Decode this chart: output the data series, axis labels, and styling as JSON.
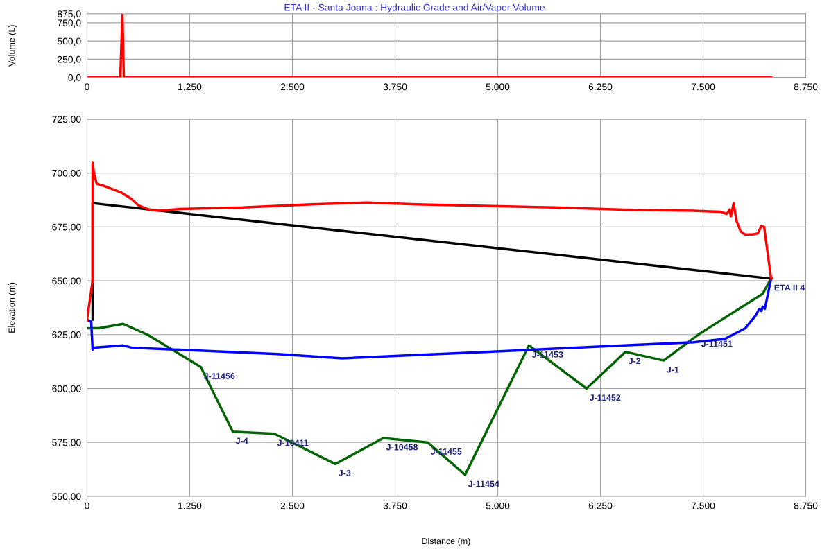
{
  "chart_data": [
    {
      "type": "line",
      "title": "ETA II - Santa Joana : Hydraulic Grade and Air/Vapor Volume",
      "ylabel": "Volume (L)",
      "series": [
        {
          "color": "#ff0000",
          "x": [
            0,
            405,
            431,
            448,
            8328
          ],
          "values": [
            0,
            0,
            875,
            0,
            0
          ]
        }
      ],
      "xlim": [
        0,
        8750
      ],
      "xticks": [
        0,
        {
          "value": 1250,
          "label": "1.250"
        },
        {
          "value": 2500,
          "label": "2.500"
        },
        {
          "value": 3750,
          "label": "3.750"
        },
        {
          "value": 5000,
          "label": "5.000"
        },
        {
          "value": 6250,
          "label": "6.250"
        },
        {
          "value": 7500,
          "label": "7.500"
        },
        {
          "value": 8750,
          "label": "8.750"
        }
      ],
      "ylim": [
        0,
        875
      ],
      "yticks": [
        {
          "value": 0,
          "label": "0,0"
        },
        {
          "value": 250,
          "label": "250,0"
        },
        {
          "value": 500,
          "label": "500,0"
        },
        {
          "value": 750,
          "label": "750,0"
        },
        {
          "value": 875,
          "label": "875,0"
        }
      ],
      "grid": true,
      "marker": "none",
      "line_style": "solid"
    },
    {
      "type": "line",
      "xlabel": "Distance (m)",
      "ylabel": "Elevation (m)",
      "series": [
        {
          "color": "#006400",
          "x": [
            0,
            143,
            439,
            735,
            1385,
            1774,
            2280,
            3024,
            3606,
            4147,
            4603,
            5380,
            6081,
            6554,
            7019,
            7441,
            8226,
            8328
          ],
          "values": [
            628,
            628,
            630,
            625,
            610,
            580,
            579,
            565,
            577,
            575,
            560,
            620,
            600,
            617,
            613,
            625,
            644,
            651
          ]
        },
        {
          "color": "#000000",
          "x": [
            68,
            68,
            8328
          ],
          "values": [
            632,
            686,
            651
          ]
        },
        {
          "color": "#0000ff",
          "x": [
            0,
            51,
            68,
            84,
            439,
            541,
            1132,
            2314,
            3108,
            4848,
            6537,
            7382,
            7762,
            8015,
            8142,
            8184,
            8209,
            8226,
            8252,
            8328
          ],
          "values": [
            632,
            631,
            618,
            619,
            620,
            619,
            618,
            616,
            614,
            617,
            620,
            621.5,
            623,
            628,
            634,
            637,
            636,
            638,
            637,
            651
          ]
        },
        {
          "color": "#ff0000",
          "x": [
            0,
            68,
            68,
            84,
            118,
            203,
            414,
            541,
            625,
            752,
            878,
            1132,
            1892,
            2736,
            3412,
            4003,
            5693,
            6537,
            7382,
            7720,
            7787,
            7821,
            7838,
            7872,
            7905,
            7956,
            8007,
            8100,
            8167,
            8209,
            8243,
            8328
          ],
          "values": [
            632,
            650,
            705,
            700,
            695,
            694,
            691,
            688,
            685,
            683,
            682.5,
            683.3,
            684,
            685.5,
            686.3,
            685.5,
            684,
            683,
            682.5,
            682,
            681,
            683,
            680,
            686,
            678,
            673,
            671.5,
            671.5,
            672,
            675.5,
            675,
            651
          ]
        }
      ],
      "xlim": [
        0,
        8750
      ],
      "xticks": [
        0,
        {
          "value": 1250,
          "label": "1.250"
        },
        {
          "value": 2500,
          "label": "2.500"
        },
        {
          "value": 3750,
          "label": "3.750"
        },
        {
          "value": 5000,
          "label": "5.000"
        },
        {
          "value": 6250,
          "label": "6.250"
        },
        {
          "value": 7500,
          "label": "7.500"
        },
        {
          "value": 8750,
          "label": "8.750"
        }
      ],
      "ylim": [
        550,
        725
      ],
      "yticks": [
        {
          "value": 550,
          "label": "550,00"
        },
        {
          "value": 575,
          "label": "575,00"
        },
        {
          "value": 600,
          "label": "600,00"
        },
        {
          "value": 625,
          "label": "625,00"
        },
        {
          "value": 650,
          "label": "650,00"
        },
        {
          "value": 675,
          "label": "675,00"
        },
        {
          "value": 700,
          "label": "700,00"
        },
        {
          "value": 725,
          "label": "725,00"
        }
      ],
      "annotations": [
        {
          "text": "J-11456",
          "x": 1385,
          "y": 610
        },
        {
          "text": "J-4",
          "x": 1774,
          "y": 580
        },
        {
          "text": "J-10411",
          "x": 2280,
          "y": 579
        },
        {
          "text": "J-3",
          "x": 3024,
          "y": 565
        },
        {
          "text": "J-10458",
          "x": 3606,
          "y": 577
        },
        {
          "text": "J-11455",
          "x": 4147,
          "y": 575
        },
        {
          "text": "J-11454",
          "x": 4603,
          "y": 560
        },
        {
          "text": "J-11453",
          "x": 5380,
          "y": 620
        },
        {
          "text": "J-11452",
          "x": 6081,
          "y": 600
        },
        {
          "text": "J-2",
          "x": 6554,
          "y": 617
        },
        {
          "text": "J-1",
          "x": 7019,
          "y": 613
        },
        {
          "text": "J-11451",
          "x": 7441,
          "y": 625
        },
        {
          "text": "ETA II 4",
          "x": 8328,
          "y": 651
        }
      ],
      "grid": true,
      "marker": "none",
      "line_style": "solid"
    }
  ]
}
